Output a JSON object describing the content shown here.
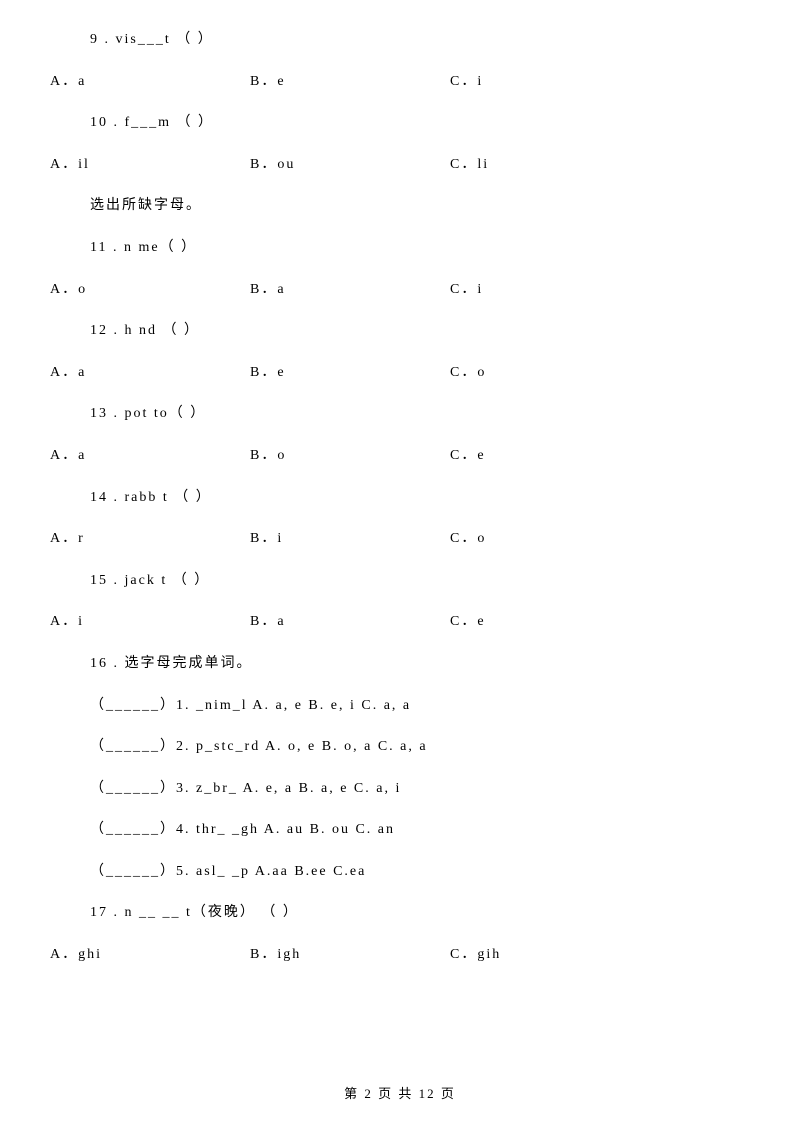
{
  "colors": {
    "bg": "#ffffff",
    "text": "#000000"
  },
  "typography": {
    "family": "SimSun",
    "size": 14,
    "footer_size": 13
  },
  "q9": {
    "stem": "9 . vis___t   （    ）",
    "a": "A．a",
    "b": "B．e",
    "c": "C．i"
  },
  "q10": {
    "stem": "10 . f___m   （    ）",
    "a": "A．il",
    "b": "B．ou",
    "c": "C．li"
  },
  "section": "选出所缺字母。",
  "q11": {
    "stem": "11 . n   me（    ）",
    "a": "A．o",
    "b": "B．a",
    "c": "C．i"
  },
  "q12": {
    "stem": "12 . h   nd  （    ）",
    "a": "A．a",
    "b": "B．e",
    "c": "C．o"
  },
  "q13": {
    "stem": "13 . pot   to（    ）",
    "a": "A．a",
    "b": "B．o",
    "c": "C．e"
  },
  "q14": {
    "stem": "14 . rabb   t （    ）",
    "a": "A．r",
    "b": "B．i",
    "c": "C．o"
  },
  "q15": {
    "stem": "15 . jack   t （    ）",
    "a": "A．i",
    "b": "B．a",
    "c": "C．e"
  },
  "q16": {
    "title": "16 . 选字母完成单词。",
    "l1": "（______）1. _nim_l    A. a, e     B. e, i      C. a, a",
    "l2": "（______）2. p_stc_rd   A. o, e     B. o, a     C. a, a",
    "l3": "（______）3. z_br_    A. e, a     B. a, e     C. a, i",
    "l4": "（______）4. thr_ _gh   A. au     B. ou     C. an",
    "l5": "（______）5. asl_ _p    A.aa     B.ee      C.ea"
  },
  "q17": {
    "stem": "17 . n __ __ t（夜晚）  （    ）",
    "a": "A．ghi",
    "b": "B．igh",
    "c": "C．gih"
  },
  "footer": "第 2 页 共 12 页"
}
